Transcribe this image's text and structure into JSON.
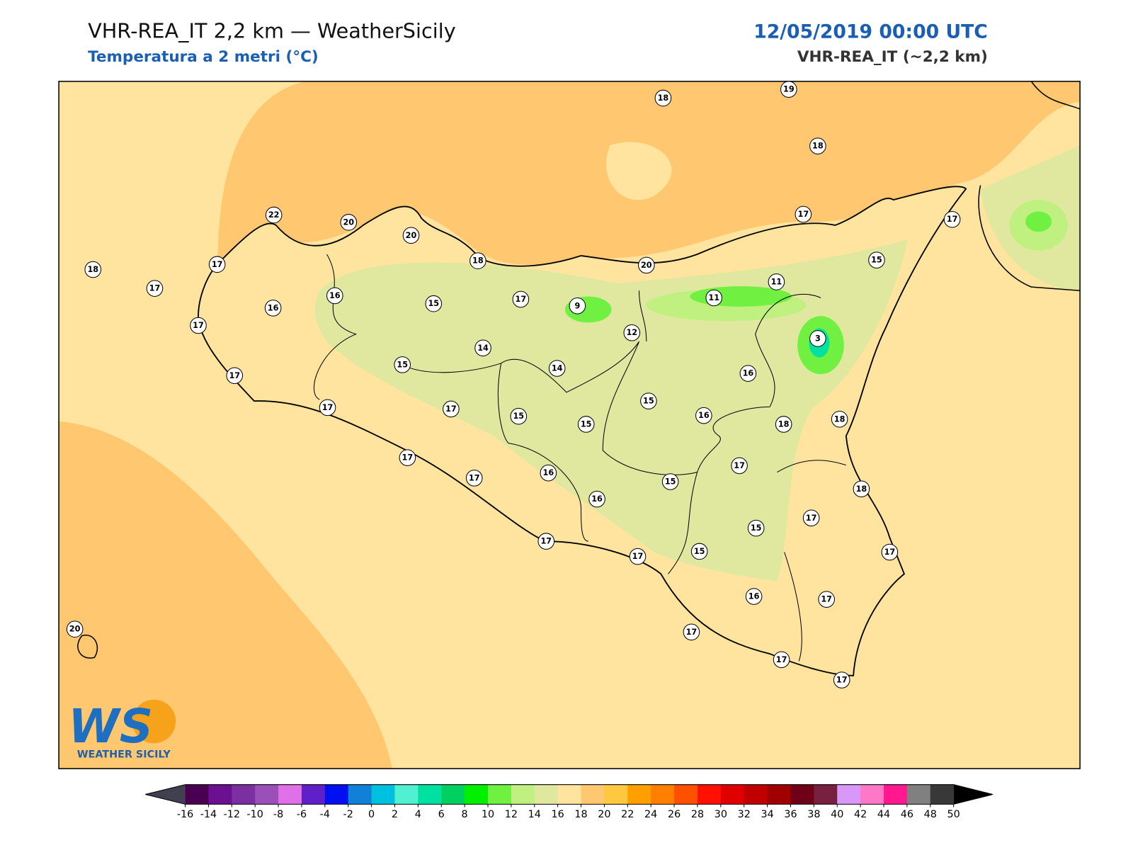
{
  "header": {
    "title": "VHR-REA_IT 2,2 km — WeatherSicily",
    "subtitle": "Temperatura a 2 metri (°C)",
    "datetime": "12/05/2019 00:00 UTC",
    "model": "VHR-REA_IT (~2,2 km)"
  },
  "stations": [
    18,
    19,
    18,
    22,
    20,
    20,
    17,
    17,
    18,
    17,
    18,
    20,
    15,
    17,
    16,
    16,
    15,
    17,
    9,
    11,
    11,
    17,
    12,
    3,
    14,
    15,
    14,
    16,
    17,
    17,
    17,
    15,
    15,
    15,
    16,
    18,
    18,
    17,
    17,
    16,
    17,
    15,
    16,
    18,
    17,
    15,
    17,
    17,
    15,
    17,
    16,
    17,
    20,
    17,
    17,
    17
  ],
  "colorbar": {
    "ticks": [
      -16,
      -14,
      -12,
      -10,
      -8,
      -6,
      -4,
      -2,
      0,
      2,
      4,
      6,
      8,
      10,
      12,
      14,
      16,
      18,
      20,
      22,
      24,
      26,
      28,
      30,
      32,
      34,
      36,
      38,
      40,
      42,
      44,
      46,
      48,
      50
    ],
    "colors": [
      "#4a0050",
      "#6a1090",
      "#7b2fa0",
      "#9b4fb8",
      "#e070e8",
      "#6020c8",
      "#0010f0",
      "#1080d8",
      "#00c0e0",
      "#50f0d0",
      "#00e0a0",
      "#00d060",
      "#00f000",
      "#70f040",
      "#c0f080",
      "#e0e8a0",
      "#ffe4a0",
      "#ffc870",
      "#ffc840",
      "#ffa000",
      "#ff8000",
      "#ff5000",
      "#ff1000",
      "#e00000",
      "#c00000",
      "#a00000",
      "#700018",
      "#782040",
      "#d898f8",
      "#ff78c8",
      "#ff1890",
      "#808080",
      "#383838"
    ],
    "under_color": "#404050",
    "over_color": "#000000"
  },
  "logo": {
    "mark": "WS",
    "name": "WEATHER SICILY"
  }
}
